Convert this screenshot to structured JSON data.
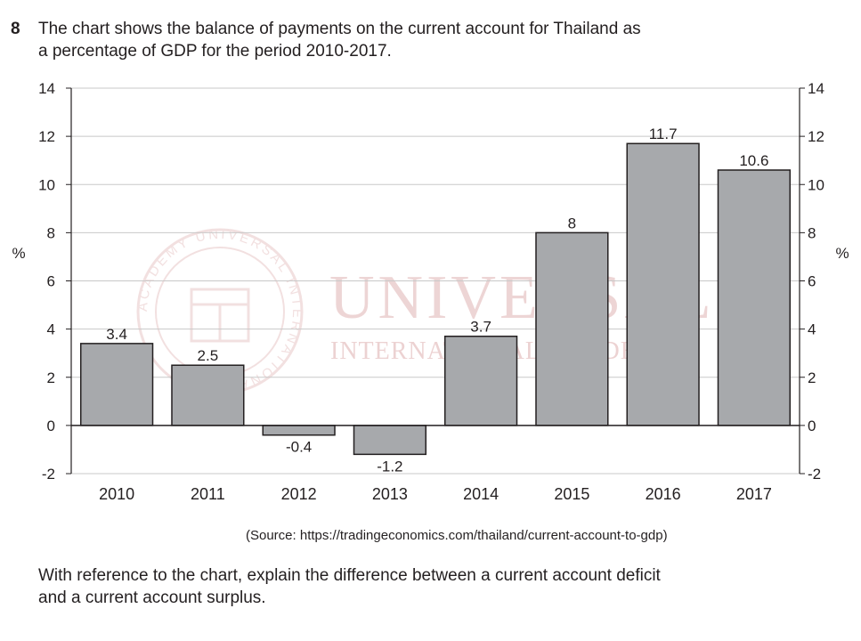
{
  "question": {
    "number": "8",
    "text_line1": "The chart shows the balance of payments on the current account for Thailand as",
    "text_line2": "a percentage of GDP for the period 2010-2017."
  },
  "watermark": {
    "line1": "UNIVERSAL",
    "line2": "INTERNATIONAL ACADEMY",
    "seal_text": "ACADEMY UNIVERSAL INTERNATIONAL"
  },
  "colors": {
    "bar_fill": "#a7a9ac",
    "bar_stroke": "#231f20",
    "grid": "#c8c8c8",
    "watermark": "#e8c7c7"
  },
  "chart_data": {
    "type": "bar",
    "categories": [
      "2010",
      "2011",
      "2012",
      "2013",
      "2014",
      "2015",
      "2016",
      "2017"
    ],
    "values": [
      3.4,
      2.5,
      -0.4,
      -1.2,
      3.7,
      8,
      11.7,
      10.6
    ],
    "value_labels": [
      "3.4",
      "2.5",
      "-0.4",
      "-1.2",
      "3.7",
      "8",
      "11.7",
      "10.6"
    ],
    "ylabel_left": "%",
    "ylabel_right": "%",
    "ylim": [
      -2,
      14
    ],
    "yticks": [
      -2,
      0,
      2,
      4,
      6,
      8,
      10,
      12,
      14
    ],
    "ytick_labels": [
      "-2",
      "0",
      "2",
      "4",
      "6",
      "8",
      "10",
      "12",
      "14"
    ],
    "grid": true,
    "legend": "none"
  },
  "source_text": "(Source: https://tradingeconomics.com/thailand/current-account-to-gdp)",
  "prompt": {
    "line1": "With reference to the chart, explain the difference between a current account deficit",
    "line2": "and a current account surplus."
  }
}
